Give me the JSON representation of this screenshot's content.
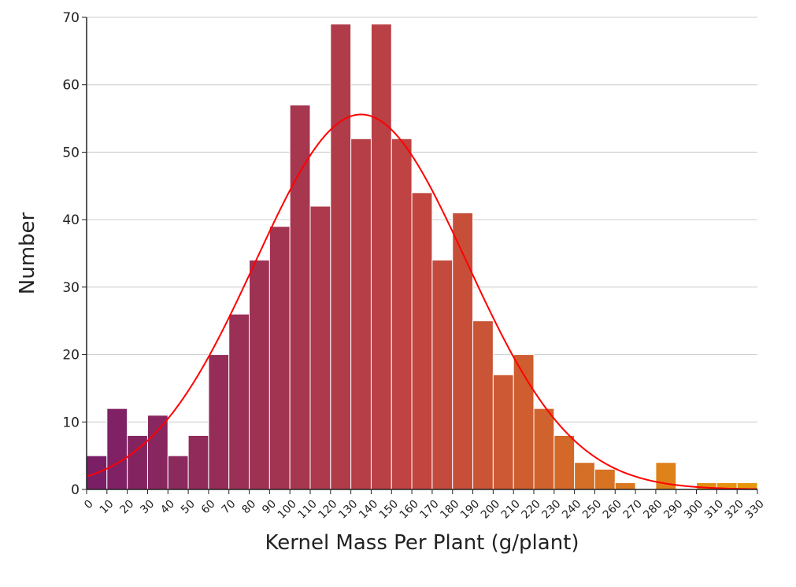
{
  "chart_data": {
    "type": "bar",
    "subtype": "histogram",
    "title": "",
    "xlabel": "Kernel Mass Per Plant (g/plant)",
    "ylabel": "Number",
    "xlim": [
      0,
      330
    ],
    "ylim": [
      0,
      70
    ],
    "bin_width": 10,
    "bin_edges": [
      0,
      10,
      20,
      30,
      40,
      50,
      60,
      70,
      80,
      90,
      100,
      110,
      120,
      130,
      140,
      150,
      160,
      170,
      180,
      190,
      200,
      210,
      220,
      230,
      240,
      250,
      260,
      270,
      280,
      290,
      300,
      310,
      320,
      330
    ],
    "x_tick_labels": [
      "0",
      "10",
      "20",
      "30",
      "40",
      "50",
      "60",
      "70",
      "80",
      "90",
      "100",
      "110",
      "120",
      "130",
      "140",
      "150",
      "160",
      "170",
      "180",
      "190",
      "200",
      "210",
      "220",
      "230",
      "240",
      "250",
      "260",
      "270",
      "280",
      "290",
      "300",
      "310",
      "320",
      "330"
    ],
    "y_ticks": [
      0,
      10,
      20,
      30,
      40,
      50,
      60,
      70
    ],
    "y_tick_labels": [
      "0",
      "10",
      "20",
      "30",
      "40",
      "50",
      "60",
      "70"
    ],
    "values": [
      5,
      12,
      8,
      11,
      5,
      8,
      20,
      26,
      34,
      39,
      57,
      42,
      69,
      52,
      69,
      52,
      44,
      34,
      41,
      25,
      17,
      20,
      12,
      8,
      4,
      3,
      1,
      0,
      4,
      0,
      1,
      1,
      1
    ],
    "grid": true,
    "fit_curve": {
      "type": "normal",
      "color": "#ff0000",
      "mean": 135,
      "sd": 52,
      "peak": 55.6,
      "x_range": [
        0,
        330
      ]
    },
    "colors": {
      "bar_start": "#7a1f66",
      "bar_mid": "#c24540",
      "bar_end": "#e8960c",
      "grid": "#cccccc",
      "axis": "#222222"
    }
  }
}
